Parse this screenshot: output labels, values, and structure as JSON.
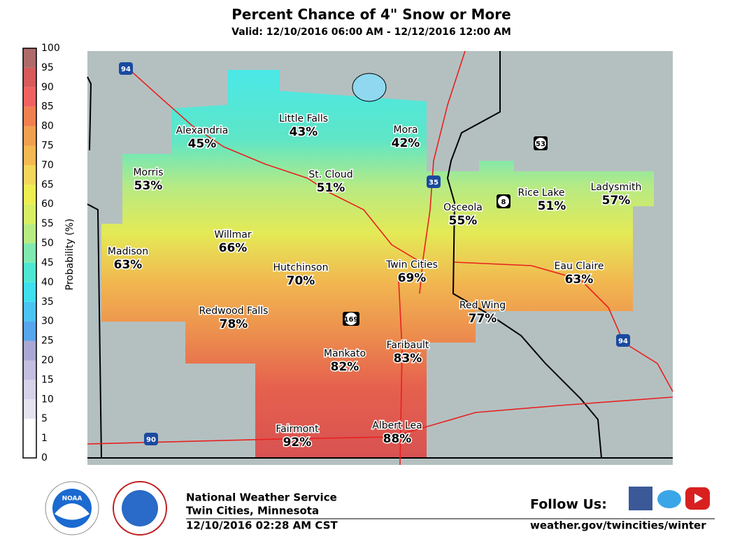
{
  "header": {
    "title": "Percent Chance of 4\" Snow or More",
    "subtitle": "Valid: 12/10/2016 06:00 AM - 12/12/2016 12:00 AM"
  },
  "legend": {
    "title": "Probability (%)",
    "ticks": [
      0,
      1,
      5,
      10,
      15,
      20,
      25,
      30,
      35,
      40,
      45,
      50,
      55,
      60,
      65,
      70,
      75,
      80,
      85,
      90,
      95,
      100
    ],
    "colors": [
      "#ffffff",
      "#ffffff",
      "#e6e3f1",
      "#d6d2ea",
      "#c3bfe0",
      "#aba7d4",
      "#58a6ee",
      "#4cc4f1",
      "#3ee0f0",
      "#4ee8d2",
      "#80e9b2",
      "#b8ec82",
      "#d9ee62",
      "#eeee52",
      "#f4d75a",
      "#f4b952",
      "#f1a050",
      "#f08050",
      "#f06262",
      "#d85a5a",
      "#b06a6a"
    ]
  },
  "cities": [
    {
      "name": "Little Falls",
      "value": "43%"
    },
    {
      "name": "Alexandria",
      "value": "45%"
    },
    {
      "name": "Mora",
      "value": "42%"
    },
    {
      "name": "Morris",
      "value": "53%"
    },
    {
      "name": "St. Cloud",
      "value": "51%"
    },
    {
      "name": "Rice Lake",
      "value": "51%"
    },
    {
      "name": "Ladysmith",
      "value": "57%"
    },
    {
      "name": "Osceola",
      "value": "55%"
    },
    {
      "name": "Willmar",
      "value": "66%"
    },
    {
      "name": "Madison",
      "value": "63%"
    },
    {
      "name": "Hutchinson",
      "value": "70%"
    },
    {
      "name": "Twin Cities",
      "value": "69%"
    },
    {
      "name": "Eau Claire",
      "value": "63%"
    },
    {
      "name": "Redwood Falls",
      "value": "78%"
    },
    {
      "name": "Red Wing",
      "value": "77%"
    },
    {
      "name": "Mankato",
      "value": "82%"
    },
    {
      "name": "Faribault",
      "value": "83%"
    },
    {
      "name": "Fairmont",
      "value": "92%"
    },
    {
      "name": "Albert Lea",
      "value": "88%"
    }
  ],
  "shields": [
    "94",
    "35",
    "53",
    "8",
    "169",
    "90",
    "94"
  ],
  "footer": {
    "org": "National Weather Service",
    "office": "Twin Cities, Minnesota",
    "issued": "12/10/2016 02:28 AM CST",
    "follow": "Follow Us:",
    "url": "weather.gov/twincities/winter",
    "noaa": "NOAA"
  }
}
